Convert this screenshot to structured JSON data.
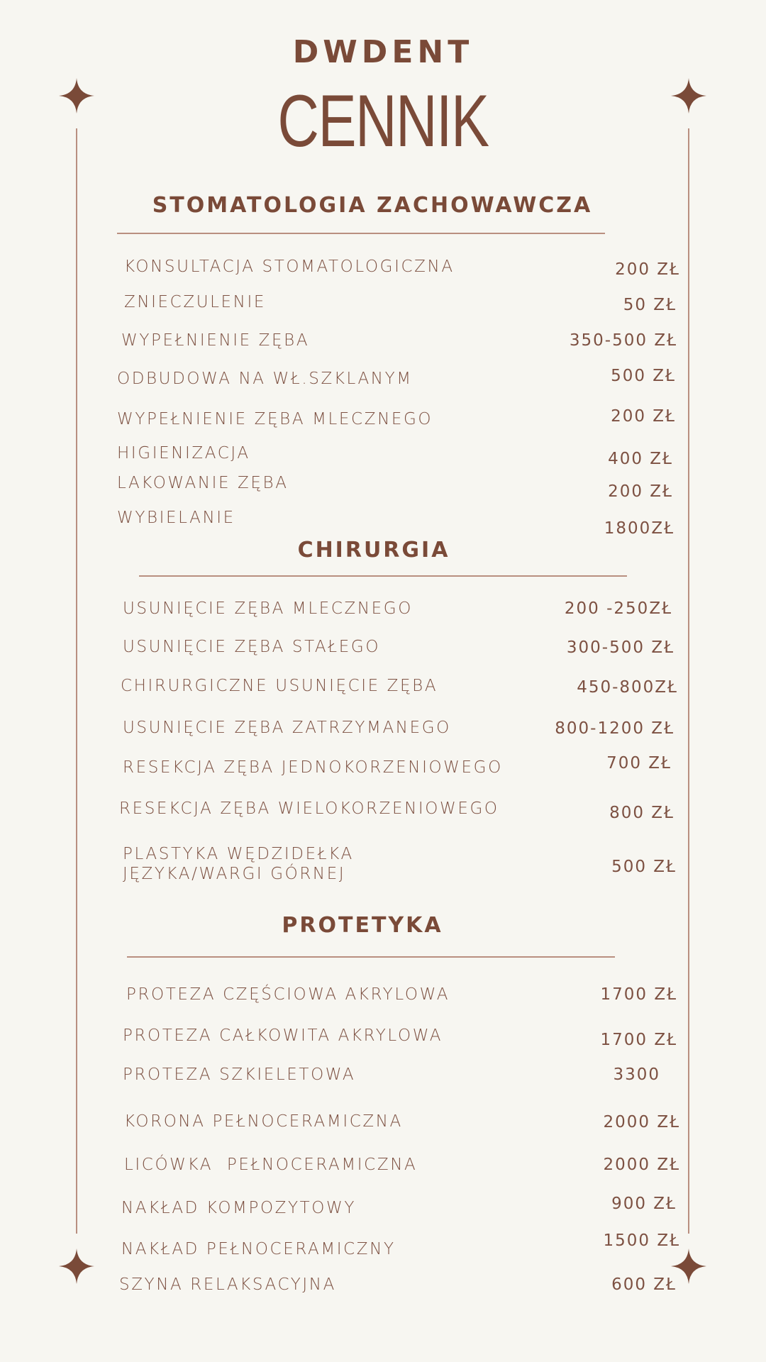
{
  "brand": "DWDENT",
  "title": "CENNIK",
  "colors": {
    "accent": "#7a4a38",
    "background": "#f7f6f1",
    "rule": "#b98f80"
  },
  "sections": [
    {
      "heading": "STOMATOLOGIA ZACHOWAWCZA",
      "items": [
        {
          "name": "KONSULTACJA STOMATOLOGICZNA",
          "price": "200 ZŁ"
        },
        {
          "name": "ZNIECZULENIE",
          "price": "50 ZŁ"
        },
        {
          "name": "WYPEŁNIENIE ZĘBA",
          "price": "350-500 ZŁ"
        },
        {
          "name": "ODBUDOWA NA WŁ.SZKLANYM",
          "price": "500 ZŁ"
        },
        {
          "name": "WYPEŁNIENIE ZĘBA MLECZNEGO",
          "price": "200 ZŁ"
        },
        {
          "name": "HIGIENIZACJA",
          "price": "400 ZŁ"
        },
        {
          "name": "LAKOWANIE ZĘBA",
          "price": "200 ZŁ"
        },
        {
          "name": "WYBIELANIE",
          "price": "1800ZŁ"
        }
      ]
    },
    {
      "heading": "CHIRURGIA",
      "items": [
        {
          "name": "USUNIĘCIE ZĘBA MLECZNEGO",
          "price": "200 -250ZŁ"
        },
        {
          "name": "USUNIĘCIE ZĘBA STAŁEGO",
          "price": "300-500 ZŁ"
        },
        {
          "name": "CHIRURGICZNE USUNIĘCIE ZĘBA",
          "price": "450-800ZŁ"
        },
        {
          "name": "USUNIĘCIE ZĘBA ZATRZYMANEGO",
          "price": "800-1200 ZŁ"
        },
        {
          "name": "RESEKCJA ZĘBA JEDNOKORZENIOWEGO",
          "price": "700 ZŁ"
        },
        {
          "name": "RESEKCJA ZĘBA WIELOKORZENIOWEGO",
          "price": "800 ZŁ"
        },
        {
          "name": "PLASTYKA WĘDZIDEŁKA\nJĘZYKA/WARGI GÓRNEJ",
          "price": "500 ZŁ"
        }
      ]
    },
    {
      "heading": "PROTETYKA",
      "items": [
        {
          "name": "PROTEZA CZĘŚCIOWA AKRYLOWA",
          "price": "1700 ZŁ"
        },
        {
          "name": "PROTEZA CAŁKOWITA AKRYLOWA",
          "price": "1700 ZŁ"
        },
        {
          "name": "PROTEZA SZKIELETOWA",
          "price": "3300"
        },
        {
          "name": "KORONA PEŁNOCERAMICZNA",
          "price": "2000 ZŁ"
        },
        {
          "name": "LICÓWKA  PEŁNOCERAMICZNA",
          "price": "2000 ZŁ"
        },
        {
          "name": "NAKŁAD KOMPOZYTOWY",
          "price": "900 ZŁ"
        },
        {
          "name": "NAKŁAD PEŁNOCERAMICZNY",
          "price": "1500 ZŁ"
        },
        {
          "name": "SZYNA RELAKSACYJNA",
          "price": "600 ZŁ"
        }
      ]
    }
  ]
}
